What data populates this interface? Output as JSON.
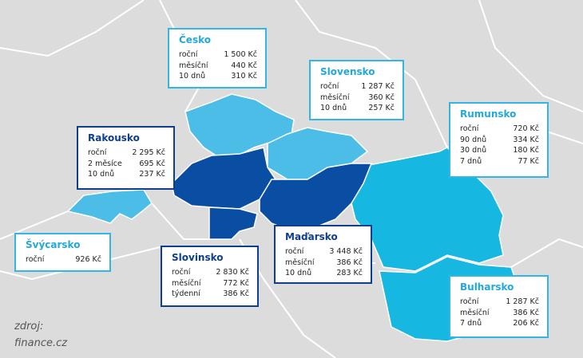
{
  "boxes": [
    {
      "title": "Česko",
      "rows": [
        [
          "roční",
          "1 500 Kč"
        ],
        [
          "měsíční",
          "440 Kč"
        ],
        [
          "10 dnů",
          "310 Kč"
        ]
      ]
    },
    {
      "title": "Slovensko",
      "rows": [
        [
          "roční",
          "1 287 Kč"
        ],
        [
          "měsíční",
          "360 Kč"
        ],
        [
          "10 dnů",
          "257 Kč"
        ]
      ]
    },
    {
      "title": "Rumunsko",
      "rows": [
        [
          "roční",
          "720 Kč"
        ],
        [
          "90 dnů",
          "334 Kč"
        ],
        [
          "30 dnů",
          "180 Kč"
        ],
        [
          "7 dnů",
          "77 Kč"
        ]
      ]
    },
    {
      "title": "Rakousko",
      "rows": [
        [
          "roční",
          "2 295 Kč"
        ],
        [
          "2 měsíce",
          "695 Kč"
        ],
        [
          "10 dnů",
          "237 Kč"
        ]
      ]
    },
    {
      "title": "Švýcarsko",
      "rows": [
        [
          "roční",
          "926 Kč"
        ]
      ]
    },
    {
      "title": "Slovinsko",
      "rows": [
        [
          "roční",
          "2 830 Kč"
        ],
        [
          "měsíční",
          "772 Kč"
        ],
        [
          "týdenní",
          "386 Kč"
        ]
      ]
    },
    {
      "title": "Maďarsko",
      "rows": [
        [
          "roční",
          "3 448 Kč"
        ],
        [
          "měsíční",
          "386 Kč"
        ],
        [
          "10 dnů",
          "283 Kč"
        ]
      ]
    },
    {
      "title": "Bulharsko",
      "rows": [
        [
          "roční",
          "1 287 Kč"
        ],
        [
          "měsíční",
          "386 Kč"
        ],
        [
          "7 dnů",
          "206 Kč"
        ]
      ]
    }
  ],
  "source": [
    "zdroj:",
    "finance.cz"
  ]
}
